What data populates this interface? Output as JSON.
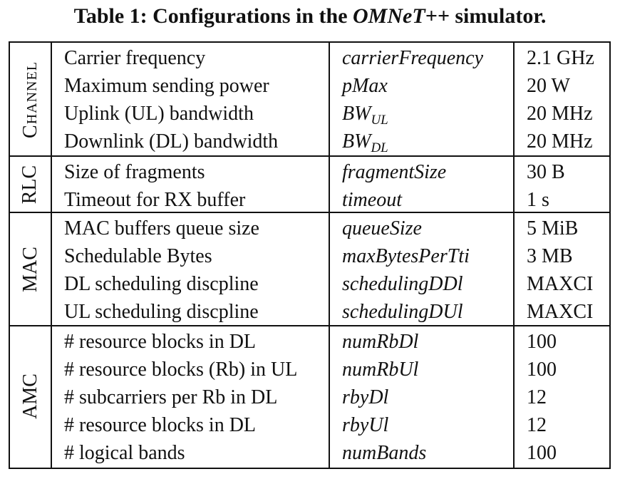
{
  "caption": {
    "prefix": "Table 1: Configurations in the ",
    "emphasis": "OMNeT++",
    "suffix": " simulator."
  },
  "groups": [
    {
      "label": "Channel",
      "rows": [
        {
          "desc": "Carrier frequency",
          "param": "carrierFrequency",
          "param_sub": "",
          "value": "2.1 GHz"
        },
        {
          "desc": "Maximum sending power",
          "param": "pMax",
          "param_sub": "",
          "value": "20 W"
        },
        {
          "desc": "Uplink (UL) bandwidth",
          "param": "BW",
          "param_sub": "UL",
          "value": "20 MHz"
        },
        {
          "desc": "Downlink (DL) bandwidth",
          "param": "BW",
          "param_sub": "DL",
          "value": "20 MHz"
        }
      ]
    },
    {
      "label": "RLC",
      "rows": [
        {
          "desc": "Size of fragments",
          "param": "fragmentSize",
          "param_sub": "",
          "value": "30 B"
        },
        {
          "desc": "Timeout for RX buffer",
          "param": "timeout",
          "param_sub": "",
          "value": "1 s"
        }
      ]
    },
    {
      "label": "MAC",
      "rows": [
        {
          "desc": "MAC buffers queue size",
          "param": "queueSize",
          "param_sub": "",
          "value": "5 MiB"
        },
        {
          "desc": "Schedulable Bytes",
          "param": "maxBytesPerTti",
          "param_sub": "",
          "value": "3 MB"
        },
        {
          "desc": "DL scheduling discpline",
          "param": "schedulingDDl",
          "param_sub": "",
          "value": "MAXCI"
        },
        {
          "desc": "UL scheduling discpline",
          "param": "schedulingDUl",
          "param_sub": "",
          "value": "MAXCI"
        }
      ]
    },
    {
      "label": "AMC",
      "rows": [
        {
          "desc": "# resource blocks in DL",
          "param": "numRbDl",
          "param_sub": "",
          "value": "100"
        },
        {
          "desc": "# resource blocks (Rb) in UL",
          "param": "numRbUl",
          "param_sub": "",
          "value": "100"
        },
        {
          "desc": "# subcarriers per Rb in DL",
          "param": "rbyDl",
          "param_sub": "",
          "value": "12"
        },
        {
          "desc": "# resource blocks in DL",
          "param": "rbyUl",
          "param_sub": "",
          "value": "12"
        },
        {
          "desc": "# logical bands",
          "param": "numBands",
          "param_sub": "",
          "value": "100"
        }
      ]
    }
  ]
}
